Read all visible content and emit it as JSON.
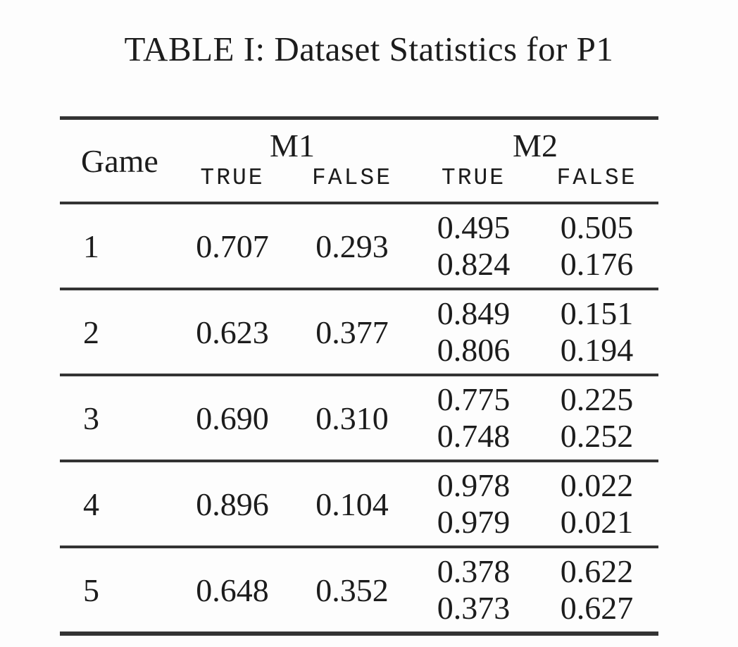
{
  "title": "TABLE I: Dataset Statistics for P1",
  "table": {
    "columns": {
      "game": "Game",
      "m1": "M1",
      "m2": "M2",
      "true_label": "TRUE",
      "false_label": "FALSE"
    },
    "rows": [
      {
        "game": "1",
        "m1_true": "0.707",
        "m1_false": "0.293",
        "m2_true": [
          "0.495",
          "0.824"
        ],
        "m2_false": [
          "0.505",
          "0.176"
        ]
      },
      {
        "game": "2",
        "m1_true": "0.623",
        "m1_false": "0.377",
        "m2_true": [
          "0.849",
          "0.806"
        ],
        "m2_false": [
          "0.151",
          "0.194"
        ]
      },
      {
        "game": "3",
        "m1_true": "0.690",
        "m1_false": "0.310",
        "m2_true": [
          "0.775",
          "0.748"
        ],
        "m2_false": [
          "0.225",
          "0.252"
        ]
      },
      {
        "game": "4",
        "m1_true": "0.896",
        "m1_false": "0.104",
        "m2_true": [
          "0.978",
          "0.979"
        ],
        "m2_false": [
          "0.022",
          "0.021"
        ]
      },
      {
        "game": "5",
        "m1_true": "0.648",
        "m1_false": "0.352",
        "m2_true": [
          "0.378",
          "0.373"
        ],
        "m2_false": [
          "0.622",
          "0.627"
        ]
      }
    ]
  },
  "colors": {
    "text": "#1c1c1c",
    "rule": "#333333",
    "background": "#fdfdfd"
  }
}
